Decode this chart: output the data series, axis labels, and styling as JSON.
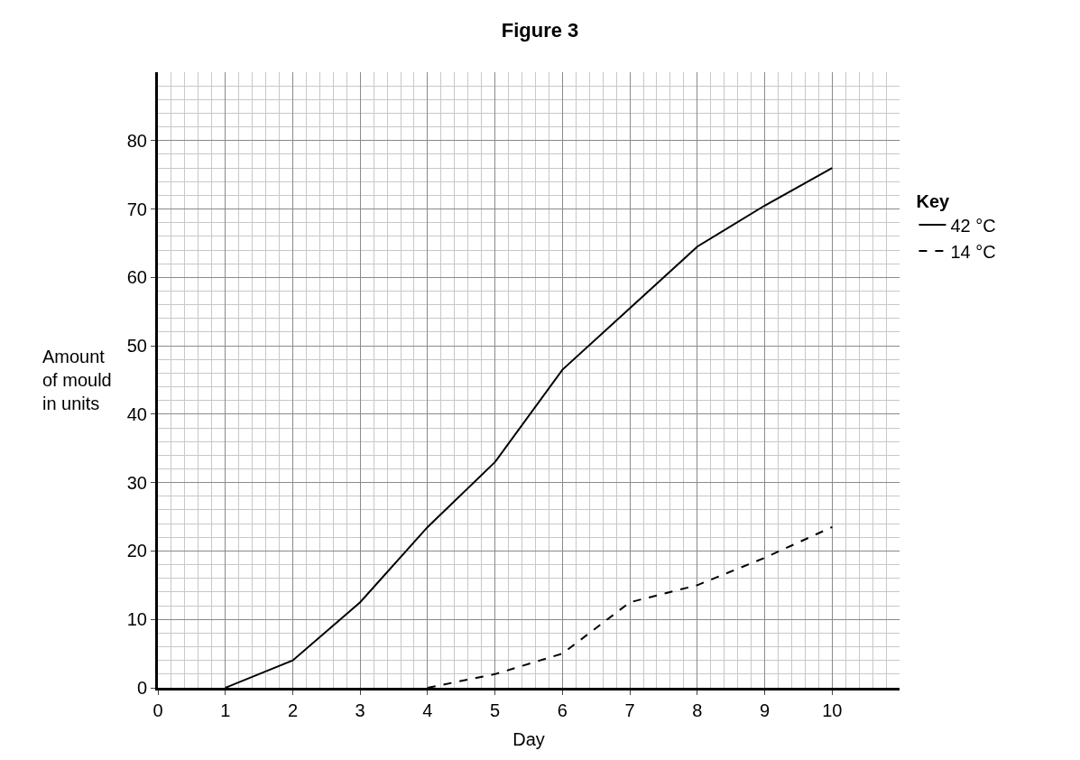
{
  "chart_data": {
    "type": "line",
    "title": "Figure 3",
    "xlabel": "Day",
    "ylabel": "Amount\nof mould\nin units",
    "legend_title": "Key",
    "series": [
      {
        "name": "42 °C",
        "color": "#000000",
        "line_style": "solid",
        "x": [
          1,
          2,
          3,
          4,
          5,
          6,
          7,
          8,
          9,
          10
        ],
        "values": [
          0,
          4,
          12.5,
          23.5,
          33,
          46.5,
          55.5,
          64.5,
          70.5,
          76
        ]
      },
      {
        "name": "14 °C",
        "color": "#000000",
        "line_style": "dashed",
        "x": [
          4,
          5,
          6,
          7,
          8,
          9,
          10
        ],
        "values": [
          0,
          2,
          5,
          12.5,
          15,
          19,
          23.5
        ]
      }
    ],
    "xlim": [
      0,
      11
    ],
    "ylim": [
      0,
      90
    ],
    "xticks": [
      0,
      1,
      2,
      3,
      4,
      5,
      6,
      7,
      8,
      9,
      10
    ],
    "yticks": [
      0,
      10,
      20,
      30,
      40,
      50,
      60,
      70,
      80
    ],
    "grid": true,
    "legend": "right",
    "marker": "none"
  }
}
